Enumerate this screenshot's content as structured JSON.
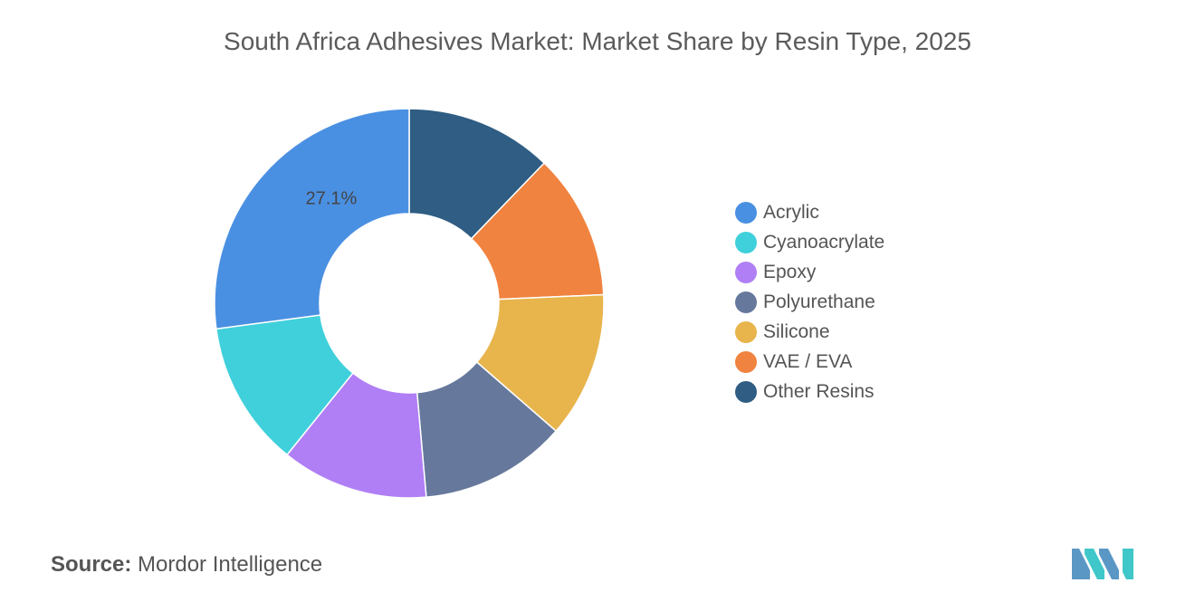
{
  "chart_data": {
    "type": "pie",
    "variant": "donut",
    "title": "South Africa Adhesives Market: Market Share by Resin Type, 2025",
    "categories": [
      "Acrylic",
      "Cyanoacrylate",
      "Epoxy",
      "Polyurethane",
      "Silicone",
      "VAE / EVA",
      "Other Resins"
    ],
    "values": [
      27.1,
      12.1,
      12.2,
      12.2,
      12.1,
      12.1,
      12.2
    ],
    "colors": [
      "#4a90e2",
      "#40d0db",
      "#b07ff5",
      "#66799c",
      "#e8b44c",
      "#f0833f",
      "#2f5d83"
    ],
    "data_labels": [
      {
        "category": "Acrylic",
        "text": "27.1%"
      }
    ],
    "legend_position": "right"
  },
  "source": {
    "label": "Source:",
    "text": "Mordor Intelligence"
  },
  "logo_icon": "mordor-intelligence-logo"
}
